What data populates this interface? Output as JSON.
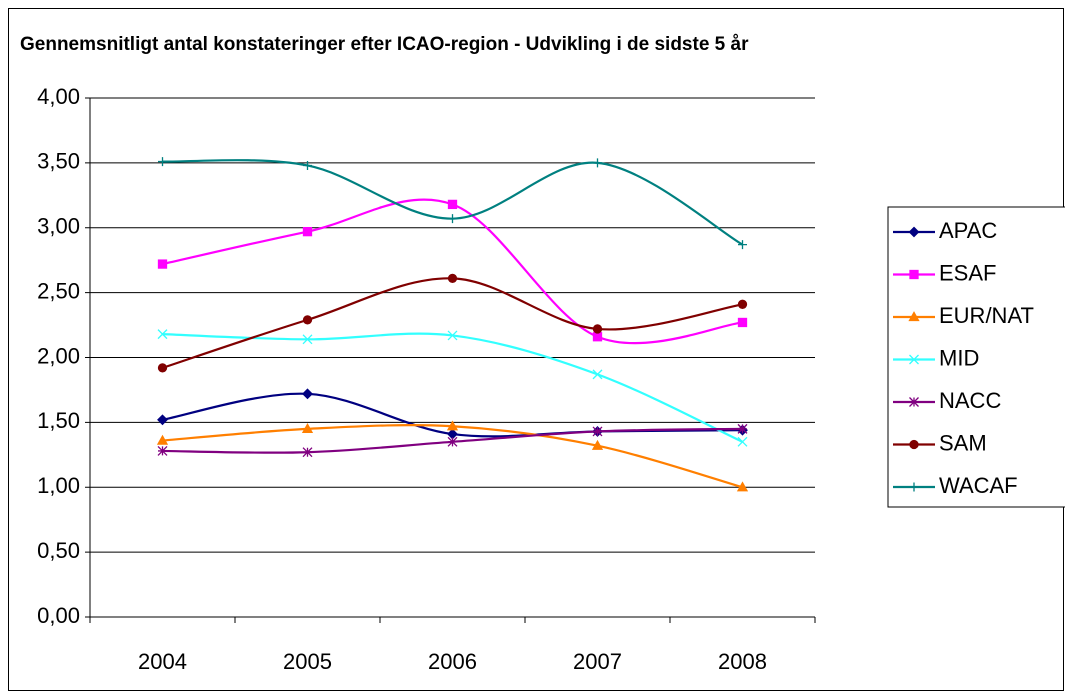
{
  "chart_data": {
    "type": "line",
    "title": "Gennemsnitligt antal konstateringer efter ICAO-region - Udvikling i de sidste 5 år",
    "categories": [
      "2004",
      "2005",
      "2006",
      "2007",
      "2008"
    ],
    "series": [
      {
        "name": "APAC",
        "color": "#000080",
        "marker": "diamond",
        "values": [
          1.52,
          1.72,
          1.41,
          1.43,
          1.44
        ]
      },
      {
        "name": "ESAF",
        "color": "#ff00ff",
        "marker": "square",
        "values": [
          2.72,
          2.97,
          3.18,
          2.16,
          2.27
        ]
      },
      {
        "name": "EUR/NAT",
        "color": "#ff7f00",
        "marker": "triangle",
        "values": [
          1.36,
          1.45,
          1.47,
          1.32,
          1.0
        ]
      },
      {
        "name": "MID",
        "color": "#33ffff",
        "marker": "x",
        "values": [
          2.18,
          2.14,
          2.17,
          1.87,
          1.35
        ]
      },
      {
        "name": "NACC",
        "color": "#800080",
        "marker": "star",
        "values": [
          1.28,
          1.27,
          1.35,
          1.43,
          1.45
        ]
      },
      {
        "name": "SAM",
        "color": "#800000",
        "marker": "circle",
        "values": [
          1.92,
          2.29,
          2.61,
          2.22,
          2.41
        ]
      },
      {
        "name": "WACAF",
        "color": "#008080",
        "marker": "plus",
        "values": [
          3.51,
          3.48,
          3.07,
          3.5,
          2.87
        ]
      }
    ],
    "ylim": [
      0,
      4
    ],
    "yticks": [
      {
        "value": 0,
        "label": "0,00"
      },
      {
        "value": 0.5,
        "label": "0,50"
      },
      {
        "value": 1,
        "label": "1,00"
      },
      {
        "value": 1.5,
        "label": "1,50"
      },
      {
        "value": 2,
        "label": "2,00"
      },
      {
        "value": 2.5,
        "label": "2,50"
      },
      {
        "value": 3,
        "label": "3,00"
      },
      {
        "value": 3.5,
        "label": "3,50"
      },
      {
        "value": 4,
        "label": "4,00"
      }
    ],
    "grid": true,
    "smooth": true,
    "legend": "right"
  }
}
